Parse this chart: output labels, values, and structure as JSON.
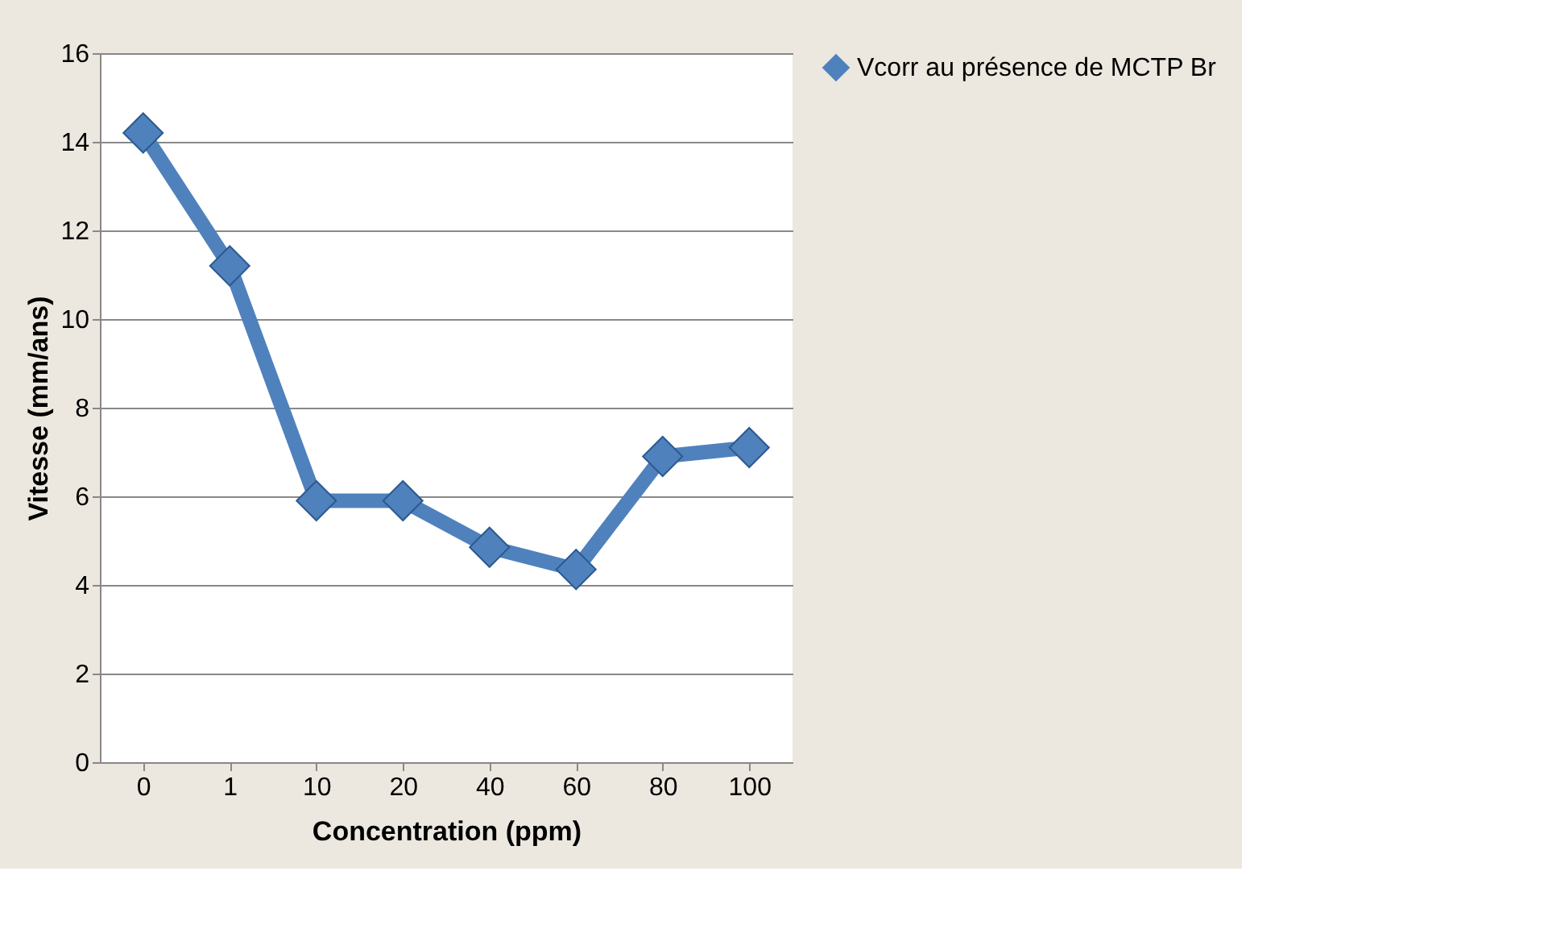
{
  "chart_data": {
    "type": "line",
    "xlabel": "Concentration (ppm)",
    "ylabel": "Vitesse (mm/ans)",
    "categories": [
      "0",
      "1",
      "10",
      "20",
      "40",
      "60",
      "80",
      "100"
    ],
    "series": [
      {
        "name": "Vcorr au présence de MCTP Br",
        "color": "#4f81bd",
        "values": [
          14.2,
          11.2,
          5.9,
          5.9,
          4.85,
          4.35,
          6.9,
          7.1
        ]
      }
    ],
    "ylim": [
      0,
      16
    ],
    "yticks": [
      0,
      2,
      4,
      6,
      8,
      10,
      12,
      14,
      16
    ],
    "grid": "y",
    "legend": "right",
    "marker": "diamond",
    "line_style": "solid"
  }
}
